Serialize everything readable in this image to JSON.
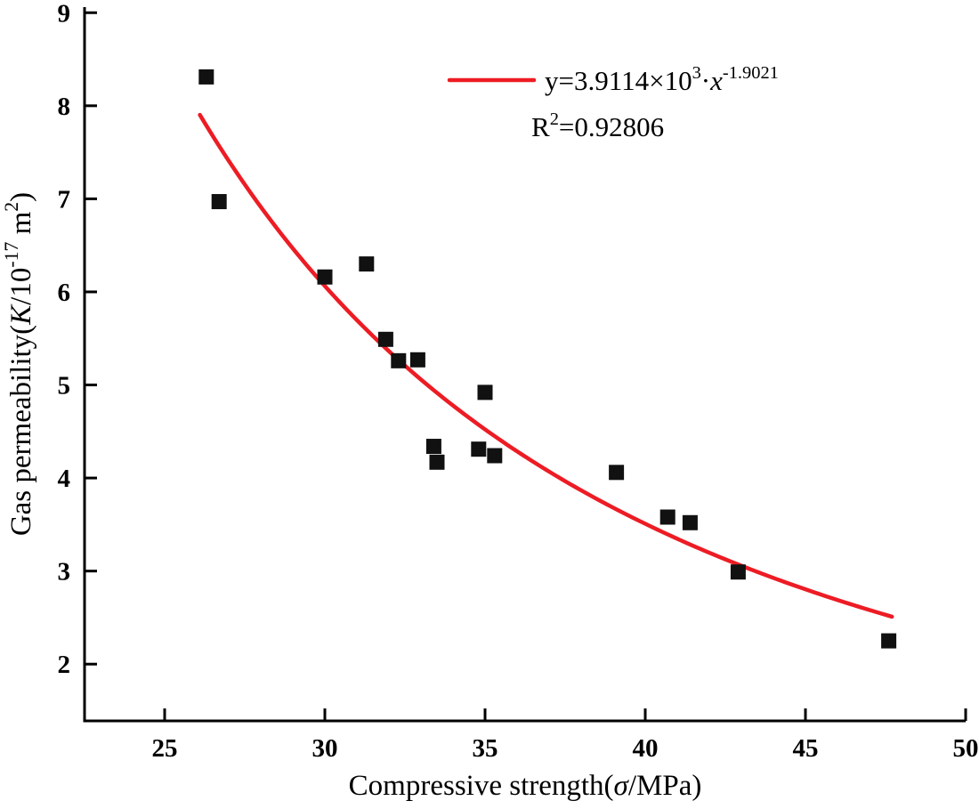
{
  "chart_data": {
    "type": "scatter",
    "title": "",
    "xlabel": "Compressive strength(σ/MPa)",
    "ylabel": "Gas permeability(K/10^-17 m^2)",
    "xlim": [
      22.5,
      50
    ],
    "ylim": [
      1.39,
      9.06
    ],
    "x_ticks": [
      25,
      30,
      35,
      40,
      45,
      50
    ],
    "y_ticks": [
      2,
      3,
      4,
      5,
      6,
      7,
      8,
      9
    ],
    "grid": false,
    "legend_position": "top-right-inside",
    "points": [
      [
        26.3,
        8.31
      ],
      [
        26.7,
        6.97
      ],
      [
        30.0,
        6.16
      ],
      [
        31.3,
        6.3
      ],
      [
        31.9,
        5.49
      ],
      [
        32.3,
        5.26
      ],
      [
        32.9,
        5.27
      ],
      [
        33.4,
        4.34
      ],
      [
        33.5,
        4.17
      ],
      [
        34.8,
        4.31
      ],
      [
        35.0,
        4.92
      ],
      [
        35.3,
        4.24
      ],
      [
        39.1,
        4.06
      ],
      [
        40.7,
        3.58
      ],
      [
        41.4,
        3.52
      ],
      [
        42.9,
        2.99
      ],
      [
        47.6,
        2.25
      ]
    ],
    "fit": {
      "type": "power",
      "a": 3911.4,
      "b": -1.9021,
      "x_start": 26.1,
      "x_end": 47.7,
      "color": "#ed1c24",
      "equation_label": "y=3.9114×10^3·x^-1.9021",
      "r2_label": "R^2=0.92806"
    },
    "point_color": "#111111",
    "axis_color": "#000000",
    "marker": "square"
  },
  "parts": {
    "xlabel": [
      {
        "t": "Compressive strength("
      },
      {
        "t": "σ",
        "italic": true
      },
      {
        "t": "/MPa)"
      }
    ],
    "ylabel": [
      {
        "t": "Gas permeability("
      },
      {
        "t": "K",
        "italic": true
      },
      {
        "t": "/10"
      },
      {
        "t": "-17",
        "sup": true
      },
      {
        "t": " m"
      },
      {
        "t": "2",
        "sup": true
      },
      {
        "t": ")"
      }
    ],
    "legend_line1": [
      {
        "t": "y=3.9114×10"
      },
      {
        "t": "3",
        "sup": true
      },
      {
        "t": "·"
      },
      {
        "t": "x",
        "italic": true
      },
      {
        "t": "-1.9021",
        "sup": true
      }
    ],
    "legend_line2": [
      {
        "t": "R"
      },
      {
        "t": "2",
        "sup": true
      },
      {
        "t": "=0.92806"
      }
    ]
  }
}
